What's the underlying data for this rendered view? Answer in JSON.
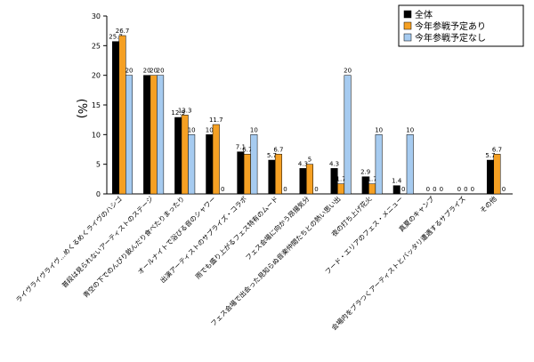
{
  "chart_data": {
    "type": "bar",
    "ylabel": "(%)",
    "ylim": [
      0,
      30
    ],
    "yticks": [
      0,
      5,
      10,
      15,
      20,
      25,
      30
    ],
    "grid": false,
    "legend_position": "top-right",
    "categories": [
      "ライヴライヴライヴ…めくるめくライヴのハシゴ",
      "普段は見られないアーティストのステージ",
      "青空の下でのんびり飲んだり食べたりまったり",
      "オールナイトで浴びる音のシャワー",
      "出演アーティストのサプライズ・コラボ",
      "雨でも盛り上がるフェス特有のムード",
      "フェス会場に向かう昂揚気分",
      "フェス会場で出会った見知らぬ音楽仲間たちとの熱い思い出",
      "夜の打ち上げ花火",
      "フード・エリアのフェス・メニュー",
      "真夏のキャンプ",
      "会場内をブラつくアーティストとバッタリ遭遇するサプライズ",
      "その他"
    ],
    "series": [
      {
        "name": "全体",
        "color": "#000000",
        "values": [
          25.7,
          20,
          12.9,
          10,
          7.1,
          5.7,
          4.3,
          4.3,
          2.9,
          1.4,
          0,
          0,
          5.7
        ],
        "labels": [
          "25.7",
          "20",
          "12.9",
          "10",
          "7.1",
          "5.7",
          "4.3",
          "4.3",
          "2.9",
          "1.4",
          "0",
          "0",
          "5.7"
        ]
      },
      {
        "name": "今年参戦予定あり",
        "color": "#f5a023",
        "values": [
          26.7,
          20,
          13.3,
          11.7,
          6.7,
          6.7,
          5,
          1.7,
          1.7,
          0,
          0,
          0,
          6.7
        ],
        "labels": [
          "26.7",
          "20",
          "13.3",
          "11.7",
          "6.7",
          "6.7",
          "5",
          "1.7",
          "1.7",
          "0",
          "0",
          "0",
          "6.7"
        ]
      },
      {
        "name": "今年参戦予定なし",
        "color": "#a6cbf0",
        "values": [
          20,
          20,
          10,
          0,
          10,
          0,
          0,
          20,
          10,
          10,
          0,
          0,
          0
        ],
        "labels": [
          "20",
          "20",
          "10",
          "0",
          "10",
          "0",
          "0",
          "20",
          "10",
          "10",
          "0",
          "0",
          "0"
        ]
      }
    ]
  }
}
